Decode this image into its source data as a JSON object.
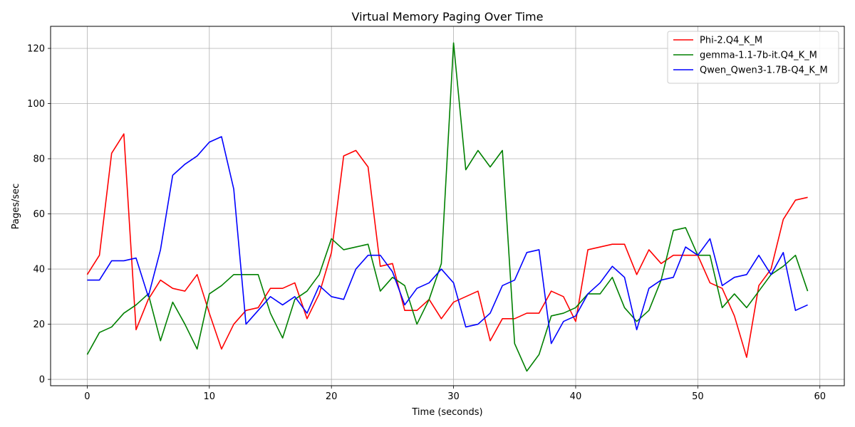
{
  "chart_data": {
    "type": "line",
    "title": "Virtual Memory Paging Over Time",
    "xlabel": "Time (seconds)",
    "ylabel": "Pages/sec",
    "xlim": [
      -3,
      62
    ],
    "ylim": [
      -2.3,
      128
    ],
    "xticks": [
      0,
      10,
      20,
      30,
      40,
      50,
      60
    ],
    "yticks": [
      0,
      20,
      40,
      60,
      80,
      100,
      120
    ],
    "grid": true,
    "legend_position": "top-right",
    "x": [
      0,
      1,
      2,
      3,
      4,
      5,
      6,
      7,
      8,
      9,
      10,
      11,
      12,
      13,
      14,
      15,
      16,
      17,
      18,
      19,
      20,
      21,
      22,
      23,
      24,
      25,
      26,
      27,
      28,
      29,
      30,
      31,
      32,
      33,
      34,
      35,
      36,
      37,
      38,
      39,
      40,
      41,
      42,
      43,
      44,
      45,
      46,
      47,
      48,
      49,
      50,
      51,
      52,
      53,
      54,
      55,
      56,
      57,
      58,
      59
    ],
    "series": [
      {
        "name": "Phi-2.Q4_K_M",
        "color": "#ff0000",
        "values": [
          38,
          45,
          82,
          89,
          18,
          29,
          36,
          33,
          32,
          38,
          24,
          11,
          20,
          25,
          26,
          33,
          33,
          35,
          22,
          31,
          46,
          81,
          83,
          77,
          41,
          42,
          25,
          25,
          29,
          22,
          28,
          30,
          32,
          14,
          22,
          22,
          24,
          24,
          32,
          30,
          21,
          47,
          48,
          49,
          49,
          38,
          47,
          42,
          45,
          45,
          45,
          35,
          33,
          23,
          8,
          34,
          40,
          58,
          65,
          66
        ]
      },
      {
        "name": "gemma-1.1-7b-it.Q4_K_M",
        "color": "#008000",
        "values": [
          9,
          17,
          19,
          24,
          27,
          31,
          14,
          28,
          20,
          11,
          31,
          34,
          38,
          38,
          38,
          24,
          15,
          29,
          32,
          38,
          51,
          47,
          48,
          49,
          32,
          37,
          34,
          20,
          29,
          42,
          122,
          76,
          83,
          77,
          83,
          13,
          3,
          9,
          23,
          24,
          26,
          31,
          31,
          37,
          26,
          21,
          25,
          36,
          54,
          55,
          45,
          45,
          26,
          31,
          26,
          32,
          38,
          41,
          45,
          32
        ]
      },
      {
        "name": "Qwen_Qwen3-1.7B-Q4_K_M",
        "color": "#0000ff",
        "values": [
          36,
          36,
          43,
          43,
          44,
          30,
          47,
          74,
          78,
          81,
          86,
          88,
          69,
          20,
          25,
          30,
          27,
          30,
          24,
          34,
          30,
          29,
          40,
          45,
          45,
          39,
          27,
          33,
          35,
          40,
          35,
          19,
          20,
          24,
          34,
          36,
          46,
          47,
          13,
          21,
          23,
          31,
          35,
          41,
          37,
          18,
          33,
          36,
          37,
          48,
          45,
          51,
          34,
          37,
          38,
          45,
          38,
          46,
          25,
          27
        ]
      }
    ]
  }
}
